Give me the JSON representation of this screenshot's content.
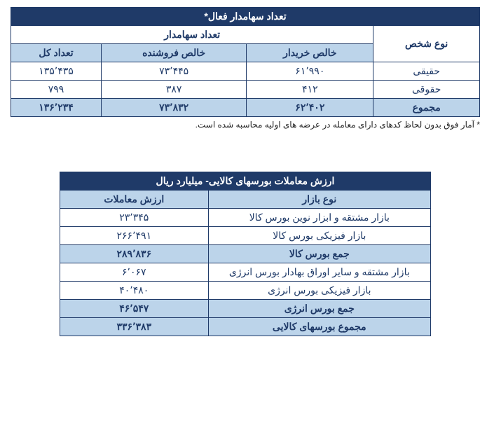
{
  "table1": {
    "title": "تعداد سهامدار فعال*",
    "group_header_right": "نوع شخص",
    "group_header_left": "تعداد سهامدار",
    "cols": [
      "خالص خریدار",
      "خالص فروشنده",
      "تعداد کل"
    ],
    "rows": [
      {
        "type": "حقیقی",
        "buyer": "۶۱٬۹۹۰",
        "seller": "۷۳٬۴۴۵",
        "total": "۱۳۵٬۴۳۵"
      },
      {
        "type": "حقوقی",
        "buyer": "۴۱۲",
        "seller": "۳۸۷",
        "total": "۷۹۹"
      }
    ],
    "sum": {
      "type": "مجموع",
      "buyer": "۶۲٬۴۰۲",
      "seller": "۷۳٬۸۳۲",
      "total": "۱۳۶٬۲۳۴"
    }
  },
  "footnote": "* آمار فوق بدون لحاظ کدهای دارای معامله در عرضه های اولیه محاسبه شده است.",
  "table2": {
    "title": "ارزش معاملات بورسهای کالایی- میلیارد ریال",
    "cols": [
      "نوع بازار",
      "ارزش معاملات"
    ],
    "rows": [
      {
        "market": "بازار مشتقه و ابزار نوین بورس کالا",
        "value": "۲۳٬۳۴۵",
        "sum": false
      },
      {
        "market": "بازار فیزیکی بورس کالا",
        "value": "۲۶۶٬۴۹۱",
        "sum": false
      },
      {
        "market": "جمع بورس کالا",
        "value": "۲۸۹٬۸۳۶",
        "sum": true
      },
      {
        "market": "بازار مشتقه و سایر اوراق بهادار بورس انرژی",
        "value": "۶٬۰۶۷",
        "sum": false
      },
      {
        "market": "بازار فیزیکی بورس انرژی",
        "value": "۴۰٬۴۸۰",
        "sum": false
      },
      {
        "market": "جمع بورس انرژی",
        "value": "۴۶٬۵۴۷",
        "sum": true
      },
      {
        "market": "مجموع بورسهای کالایی",
        "value": "۳۳۶٬۳۸۳",
        "sum": true
      }
    ]
  },
  "colors": {
    "dark": "#1f3a68",
    "light": "#bcd4ea",
    "white": "#ffffff"
  }
}
